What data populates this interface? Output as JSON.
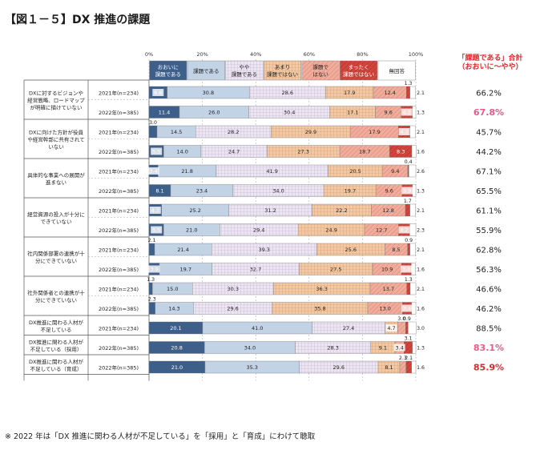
{
  "title": "【図１－５】DX 推進の課題",
  "footnote": "※ 2022 年は「DX 推進に関わる人材が不足している」を「採用」と「育成」にわけて聴取",
  "total_header": [
    "「課題である」合計",
    "（おおいに〜やや）"
  ],
  "chart_data": {
    "type": "bar",
    "orientation": "horizontal-stacked-100",
    "xlim": [
      0,
      100
    ],
    "x_ticks": [
      "0%",
      "20%",
      "40%",
      "60%",
      "80%",
      "100%"
    ],
    "legend": [
      {
        "label": "おおいに課題である",
        "color": "#3d5f8a",
        "pattern": "solid"
      },
      {
        "label": "課題である",
        "color": "#c3d3e6",
        "pattern": "solid"
      },
      {
        "label": "やや課題である",
        "color": "#ece6f0",
        "pattern": "grid"
      },
      {
        "label": "あまり課題ではない",
        "color": "#f2c9a4",
        "pattern": "grid"
      },
      {
        "label": "課題ではない",
        "color": "#f0ad9c",
        "pattern": "diagonal"
      },
      {
        "label": "まったく課題ではない",
        "color": "#d2453c",
        "pattern": "diagonal"
      },
      {
        "label": "無回答",
        "color": "#ffffff",
        "pattern": "solid"
      }
    ],
    "groups": [
      {
        "label": "DXに対するビジョンや経営戦略、ロードマップが明確に描けていない",
        "rows": [
          {
            "year": "2021年(n=234)",
            "values": [
              6.8,
              30.8,
              28.6,
              17.9,
              12.4,
              1.3,
              2.1
            ],
            "total": "66.2%",
            "highlight": ""
          },
          {
            "year": "2022年(n=385)",
            "values": [
              11.4,
              26.0,
              30.4,
              17.1,
              9.6,
              4.2,
              1.3
            ],
            "total": "67.8%",
            "highlight": "pink"
          }
        ]
      },
      {
        "label": "DXに向けた方針が役員や経営幹部に共有されていない",
        "rows": [
          {
            "year": "2021年(n=234)",
            "values": [
              3.0,
              14.5,
              28.2,
              29.9,
              17.9,
              4.3,
              2.1
            ],
            "total": "45.7%",
            "highlight": ""
          },
          {
            "year": "2022年(n=385)",
            "values": [
              5.5,
              14.0,
              24.7,
              27.3,
              18.7,
              8.3,
              1.6
            ],
            "total": "44.2%",
            "highlight": ""
          }
        ]
      },
      {
        "label": "具体的な事業への展開が進まない",
        "rows": [
          {
            "year": "2021年(n=234)",
            "values": [
              3.4,
              21.8,
              41.9,
              20.5,
              9.4,
              0.4,
              2.6
            ],
            "total": "67.1%",
            "highlight": ""
          },
          {
            "year": "2022年(n=385)",
            "values": [
              8.1,
              23.4,
              34.0,
              19.7,
              9.6,
              3.9,
              1.3
            ],
            "total": "65.5%",
            "highlight": ""
          }
        ]
      },
      {
        "label": "経営資源の投入が十分にできていない",
        "rows": [
          {
            "year": "2021年(n=234)",
            "values": [
              4.7,
              25.2,
              31.2,
              22.2,
              12.8,
              1.7,
              2.1
            ],
            "total": "61.1%",
            "highlight": ""
          },
          {
            "year": "2022年(n=385)",
            "values": [
              5.5,
              21.0,
              29.4,
              24.9,
              12.7,
              4.2,
              2.3
            ],
            "total": "55.9%",
            "highlight": ""
          }
        ]
      },
      {
        "label": "社内関係部署の連携が十分にできていない",
        "rows": [
          {
            "year": "2021年(n=234)",
            "values": [
              2.1,
              21.4,
              39.3,
              25.6,
              8.5,
              0.9,
              2.1
            ],
            "total": "62.8%",
            "highlight": ""
          },
          {
            "year": "2022年(n=385)",
            "values": [
              3.9,
              19.7,
              32.7,
              27.5,
              10.9,
              3.6,
              1.6
            ],
            "total": "56.3%",
            "highlight": ""
          }
        ]
      },
      {
        "label": "社外関係者との連携が十分にできていない",
        "rows": [
          {
            "year": "2021年(n=234)",
            "values": [
              1.3,
              15.0,
              30.3,
              36.3,
              13.7,
              1.3,
              2.1
            ],
            "total": "46.6%",
            "highlight": ""
          },
          {
            "year": "2022年(n=385)",
            "values": [
              2.3,
              14.3,
              29.6,
              35.8,
              13.0,
              3.4,
              1.6
            ],
            "total": "46.2%",
            "highlight": ""
          }
        ]
      },
      {
        "label": "DX推進に関わる人材が不足している",
        "rows": [
          {
            "year": "2021年(n=234)",
            "values": [
              20.1,
              41.0,
              27.4,
              4.7,
              3.0,
              0.9,
              3.0
            ],
            "total": "88.5%",
            "highlight": ""
          }
        ]
      },
      {
        "label": "DX推進に関わる人材が不足している（採用）",
        "rows": [
          {
            "year": "2022年(n=385)",
            "values": [
              20.8,
              34.0,
              28.3,
              9.1,
              3.4,
              3.1,
              1.3
            ],
            "total": "83.1%",
            "highlight": "pink"
          }
        ]
      },
      {
        "label": "DX推進に関わる人材が不足している（育成）",
        "rows": [
          {
            "year": "2022年(n=385)",
            "values": [
              21.0,
              35.3,
              29.6,
              8.1,
              2.3,
              2.1,
              1.6
            ],
            "total": "85.9%",
            "highlight": "red"
          }
        ]
      }
    ]
  }
}
